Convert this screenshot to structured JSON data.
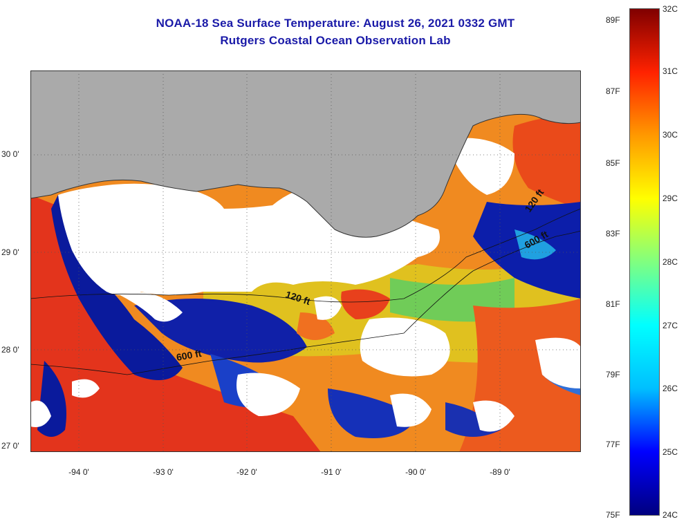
{
  "title": {
    "line1": "NOAA-18 Sea Surface Temperature:  August 26, 2021 0332 GMT",
    "line2": "Rutgers Coastal Ocean Observation Lab"
  },
  "map": {
    "lat_labels": [
      "30 0'",
      "29 0'",
      "28 0'",
      "27 0'"
    ],
    "lon_labels": [
      "-94 0'",
      "-93 0'",
      "-92 0'",
      "-91 0'",
      "-90 0'",
      "-89 0'"
    ],
    "contour_labels": [
      "120 ft",
      "600 ft",
      "120 ft",
      "600 ft"
    ],
    "lat_range": [
      27.0,
      30.8
    ],
    "lon_range": [
      -94.5,
      -88.2
    ],
    "colors": {
      "land": "#aaaaaa",
      "cloud": "#ffffff",
      "warm": "#e8281e",
      "cool": "#0a1a9c"
    }
  },
  "colorbar": {
    "fahrenheit_labels": [
      "89F",
      "87F",
      "85F",
      "83F",
      "81F",
      "79F",
      "77F",
      "75F"
    ],
    "celsius_labels": [
      "32C",
      "31C",
      "30C",
      "29C",
      "28C",
      "27C",
      "26C",
      "25C",
      "24C"
    ],
    "range_c": [
      24,
      32
    ],
    "colors": [
      "#00007f",
      "#0000ff",
      "#00bfff",
      "#00ffff",
      "#80ff80",
      "#ffff00",
      "#ff9900",
      "#ff2200",
      "#800000"
    ]
  }
}
